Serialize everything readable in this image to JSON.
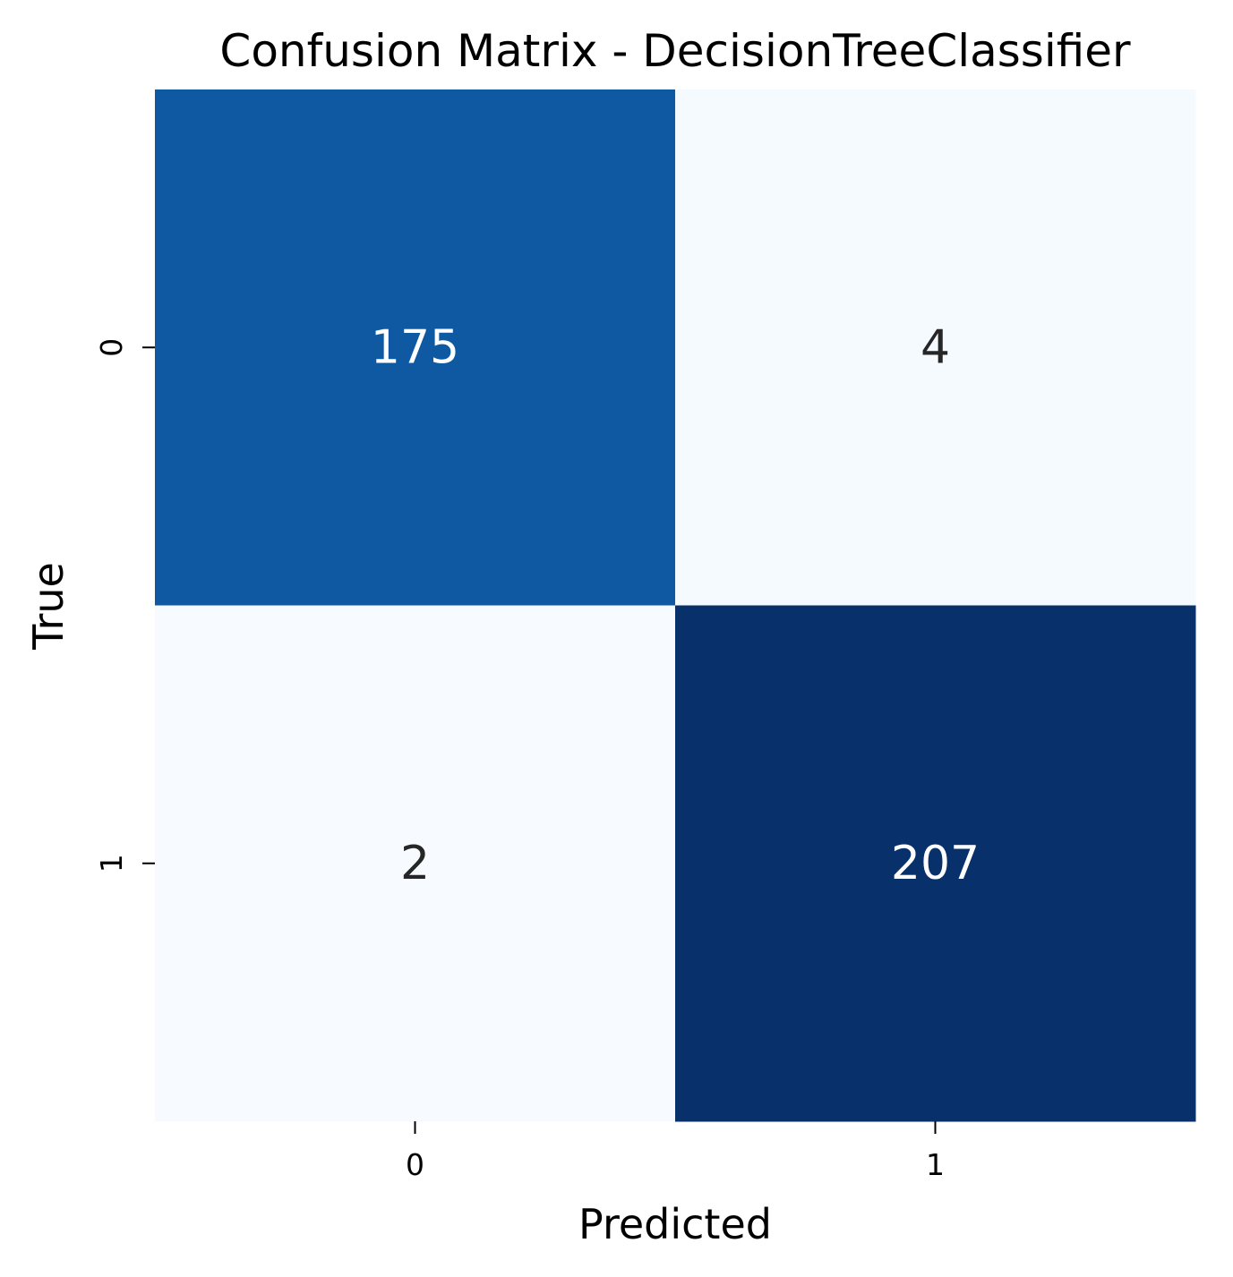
{
  "chart_data": {
    "type": "heatmap",
    "title": "Confusion Matrix - DecisionTreeClassifier",
    "xlabel": "Predicted",
    "ylabel": "True",
    "x_categories": [
      "0",
      "1"
    ],
    "y_categories": [
      "0",
      "1"
    ],
    "values": [
      [
        175,
        4
      ],
      [
        2,
        207
      ]
    ],
    "colormap": "Blues",
    "colorbar": false,
    "colors": {
      "low": "#f7fbff",
      "high": "#08306b",
      "text_dark": "#262626",
      "text_light": "#ffffff"
    }
  }
}
